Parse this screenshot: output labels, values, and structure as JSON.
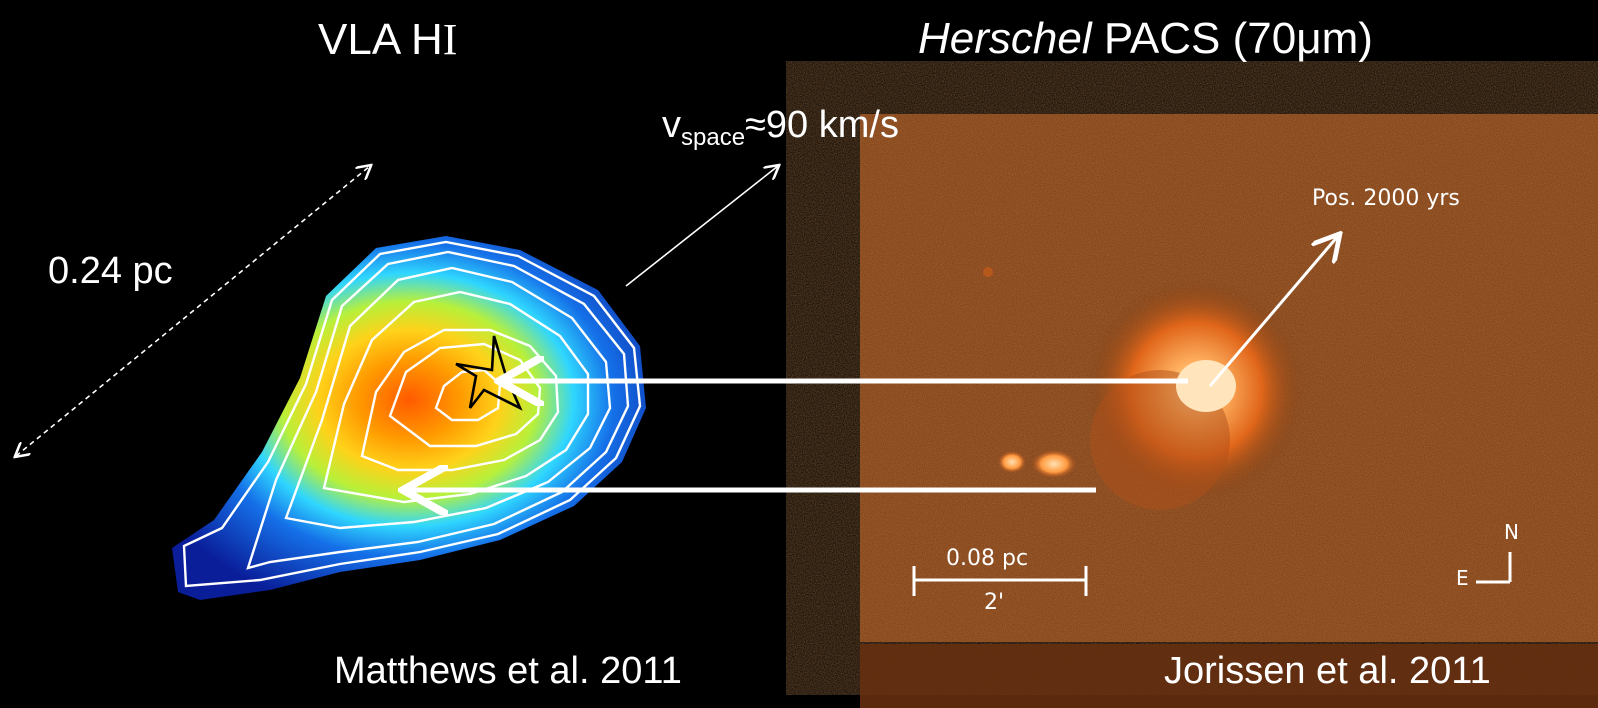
{
  "panels": {
    "left": {
      "title_prefix": "VLA H",
      "title_roman": "I",
      "credit": "Matthews et al. 2011",
      "scale_label": "0.24 pc",
      "velocity_prefix": "v",
      "velocity_sub": "space",
      "velocity_value": "≈90 km/s"
    },
    "right": {
      "title_italic": "Herschel",
      "title_rest": " PACS (70μm)",
      "credit": "Jorissen et al. 2011",
      "position_label": "Pos. 2000 yrs",
      "scale_label": "0.08 pc",
      "scale_arc": "2'",
      "compass_n": "N",
      "compass_e": "E"
    }
  },
  "colors": {
    "background": "#000000",
    "text": "#ffffff",
    "herschel_bg": "#7a3a12",
    "herschel_glow": "#ffd9a0",
    "hi_outer": "#0a1e9a",
    "hi_mid": "#2fd6ff",
    "hi_inner": "#ffd21a",
    "hi_core": "#ff5a00"
  }
}
